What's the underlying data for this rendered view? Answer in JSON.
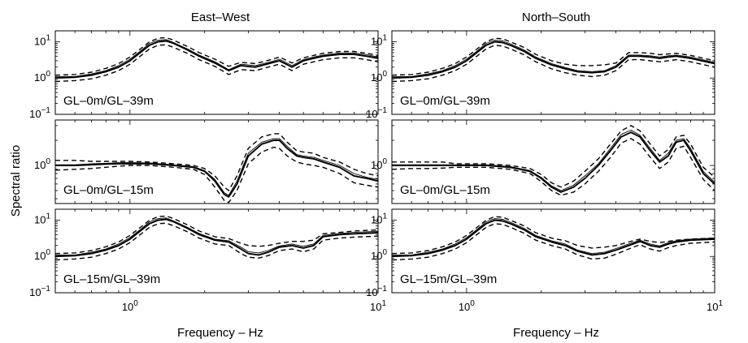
{
  "figure": {
    "ylabel": "Spectral ratio",
    "xlabel": "Frequency – Hz",
    "column_titles": [
      "East–West",
      "North–South"
    ],
    "x_ticks": [
      {
        "value": 1,
        "base": "10",
        "exp": "0"
      },
      {
        "value": 10,
        "base": "10",
        "exp": "1"
      }
    ],
    "y_ticks_wide": [
      {
        "value": 0.1,
        "base": "10",
        "exp": "−1"
      },
      {
        "value": 1,
        "base": "10",
        "exp": "0"
      },
      {
        "value": 10,
        "base": "10",
        "exp": "1"
      }
    ],
    "y_ticks_mid": [
      {
        "value": 1,
        "base": "10",
        "exp": "0"
      }
    ],
    "line_color": "#000000"
  },
  "chart_data": [
    {
      "type": "line",
      "title": "GL–0m/GL–39m",
      "column": "East–West",
      "xscale": "log",
      "yscale": "log",
      "xlim": [
        0.5,
        10
      ],
      "ylim": [
        0.1,
        20
      ],
      "x": [
        0.5,
        0.6,
        0.7,
        0.8,
        0.9,
        1.0,
        1.1,
        1.2,
        1.3,
        1.4,
        1.5,
        1.7,
        1.9,
        2.2,
        2.5,
        2.8,
        3.2,
        3.7,
        4.0,
        4.5,
        5.0,
        5.5,
        6.0,
        7.0,
        8.0,
        9.0,
        10.0
      ],
      "series": [
        {
          "name": "mean",
          "style": "solid",
          "values": [
            1.0,
            1.05,
            1.2,
            1.5,
            2.0,
            3.0,
            5.0,
            8.0,
            10.0,
            10.5,
            9.0,
            6.0,
            4.0,
            2.6,
            1.6,
            2.2,
            2.0,
            2.6,
            3.0,
            2.0,
            3.0,
            3.5,
            4.0,
            4.5,
            4.5,
            4.0,
            3.5
          ]
        },
        {
          "name": "mean+sd",
          "style": "dashed",
          "values": [
            1.2,
            1.25,
            1.45,
            1.85,
            2.5,
            3.8,
            6.3,
            10.0,
            12.5,
            13.0,
            11.0,
            7.5,
            5.0,
            3.3,
            2.1,
            2.7,
            2.5,
            3.2,
            3.8,
            2.6,
            3.6,
            4.2,
            4.8,
            5.4,
            5.4,
            4.8,
            4.2
          ]
        },
        {
          "name": "mean-sd",
          "style": "dashed",
          "values": [
            0.8,
            0.85,
            0.95,
            1.2,
            1.6,
            2.4,
            4.0,
            6.4,
            8.0,
            8.2,
            7.0,
            4.8,
            3.2,
            2.1,
            1.25,
            1.7,
            1.6,
            2.1,
            2.4,
            1.6,
            2.4,
            2.8,
            3.2,
            3.6,
            3.6,
            3.2,
            2.8
          ]
        },
        {
          "name": "individual",
          "style": "solid-thin",
          "values": [
            1.1,
            1.1,
            1.3,
            1.6,
            2.2,
            3.3,
            5.5,
            9.0,
            11.0,
            11.5,
            9.5,
            6.4,
            4.3,
            2.8,
            1.7,
            2.4,
            2.2,
            2.8,
            3.3,
            2.2,
            3.2,
            3.8,
            4.3,
            4.9,
            4.9,
            4.4,
            3.8
          ]
        }
      ]
    },
    {
      "type": "line",
      "title": "GL–0m/GL–15m",
      "column": "East–West",
      "xscale": "log",
      "yscale": "log",
      "xlim": [
        0.5,
        10
      ],
      "ylim": [
        0.35,
        3.5
      ],
      "x": [
        0.5,
        0.6,
        0.7,
        0.8,
        0.9,
        1.0,
        1.2,
        1.5,
        1.8,
        2.0,
        2.2,
        2.4,
        2.5,
        2.7,
        3.0,
        3.4,
        3.8,
        4.0,
        4.3,
        4.7,
        5.0,
        5.5,
        6.0,
        7.0,
        8.0,
        9.0,
        10.0
      ],
      "series": [
        {
          "name": "mean",
          "style": "solid",
          "values": [
            1.0,
            1.0,
            1.02,
            1.04,
            1.05,
            1.05,
            1.05,
            1.0,
            0.95,
            0.85,
            0.65,
            0.45,
            0.42,
            0.6,
            1.3,
            1.8,
            2.0,
            2.0,
            1.6,
            1.3,
            1.25,
            1.2,
            1.1,
            0.95,
            0.75,
            0.7,
            0.65
          ]
        },
        {
          "name": "mean+sd",
          "style": "dashed",
          "values": [
            1.15,
            1.15,
            1.12,
            1.12,
            1.12,
            1.12,
            1.1,
            1.05,
            1.0,
            0.92,
            0.75,
            0.55,
            0.5,
            0.75,
            1.6,
            2.2,
            2.4,
            2.4,
            1.9,
            1.5,
            1.45,
            1.4,
            1.25,
            1.1,
            0.9,
            0.8,
            0.75
          ]
        },
        {
          "name": "mean-sd",
          "style": "dashed",
          "values": [
            0.88,
            0.9,
            0.92,
            0.95,
            0.98,
            1.0,
            1.0,
            0.95,
            0.9,
            0.78,
            0.55,
            0.38,
            0.36,
            0.5,
            1.05,
            1.45,
            1.65,
            1.6,
            1.3,
            1.1,
            1.05,
            1.0,
            0.95,
            0.8,
            0.62,
            0.58,
            0.55
          ]
        },
        {
          "name": "individual",
          "style": "solid-thin",
          "values": [
            1.02,
            1.02,
            1.05,
            1.06,
            1.08,
            1.08,
            1.07,
            1.02,
            0.97,
            0.87,
            0.68,
            0.47,
            0.44,
            0.65,
            1.4,
            1.9,
            2.1,
            2.1,
            1.7,
            1.35,
            1.3,
            1.25,
            1.15,
            1.0,
            0.8,
            0.72,
            0.68
          ]
        }
      ]
    },
    {
      "type": "line",
      "title": "GL–15m/GL–39m",
      "column": "East–West",
      "xscale": "log",
      "yscale": "log",
      "xlim": [
        0.5,
        10
      ],
      "ylim": [
        0.1,
        20
      ],
      "x": [
        0.5,
        0.6,
        0.7,
        0.8,
        0.9,
        1.0,
        1.1,
        1.2,
        1.3,
        1.4,
        1.5,
        1.7,
        1.9,
        2.2,
        2.5,
        2.8,
        3.0,
        3.3,
        3.6,
        4.0,
        4.5,
        5.0,
        5.5,
        6.0,
        7.0,
        8.0,
        10.0
      ],
      "series": [
        {
          "name": "mean",
          "style": "solid",
          "values": [
            1.0,
            1.05,
            1.2,
            1.5,
            2.0,
            3.0,
            5.0,
            8.0,
            10.0,
            10.5,
            9.0,
            6.0,
            4.0,
            2.8,
            2.5,
            1.6,
            1.2,
            1.1,
            1.3,
            1.8,
            2.0,
            1.7,
            2.0,
            3.5,
            4.0,
            4.2,
            4.5
          ]
        },
        {
          "name": "mean+sd",
          "style": "dashed",
          "values": [
            1.2,
            1.25,
            1.45,
            1.85,
            2.5,
            3.8,
            6.3,
            10.0,
            12.5,
            13.0,
            11.0,
            7.5,
            5.0,
            3.5,
            3.1,
            2.3,
            2.0,
            1.9,
            2.0,
            2.3,
            2.6,
            2.6,
            2.8,
            4.2,
            4.6,
            5.0,
            5.4
          ]
        },
        {
          "name": "mean-sd",
          "style": "dashed",
          "values": [
            0.8,
            0.85,
            0.95,
            1.2,
            1.6,
            2.4,
            4.0,
            6.4,
            8.0,
            8.2,
            7.0,
            4.8,
            3.2,
            2.2,
            2.0,
            1.2,
            0.95,
            0.9,
            1.05,
            1.45,
            1.6,
            1.35,
            1.6,
            2.8,
            3.2,
            3.4,
            3.6
          ]
        },
        {
          "name": "individual",
          "style": "solid-thin",
          "values": [
            1.1,
            1.1,
            1.3,
            1.6,
            2.2,
            3.3,
            5.5,
            9.0,
            11.0,
            11.5,
            9.5,
            6.4,
            4.3,
            3.0,
            2.7,
            1.8,
            1.35,
            1.25,
            1.45,
            1.95,
            2.2,
            1.9,
            2.2,
            3.8,
            4.3,
            4.6,
            4.9
          ]
        }
      ]
    },
    {
      "type": "line",
      "title": "GL–0m/GL–39m",
      "column": "North–South",
      "xscale": "log",
      "yscale": "log",
      "xlim": [
        0.5,
        10
      ],
      "ylim": [
        0.1,
        20
      ],
      "x": [
        0.5,
        0.6,
        0.7,
        0.8,
        0.9,
        1.0,
        1.1,
        1.2,
        1.3,
        1.4,
        1.5,
        1.7,
        1.9,
        2.2,
        2.5,
        2.8,
        3.2,
        3.6,
        4.0,
        4.5,
        5.0,
        5.5,
        6.0,
        6.5,
        7.0,
        8.0,
        10.0
      ],
      "series": [
        {
          "name": "mean",
          "style": "solid",
          "values": [
            1.0,
            1.05,
            1.2,
            1.5,
            2.0,
            3.0,
            5.0,
            8.0,
            10.0,
            9.5,
            8.0,
            5.5,
            3.5,
            2.3,
            1.8,
            1.5,
            1.4,
            1.5,
            2.0,
            4.0,
            4.0,
            3.8,
            3.5,
            3.8,
            4.0,
            3.5,
            2.5
          ]
        },
        {
          "name": "mean+sd",
          "style": "dashed",
          "values": [
            1.2,
            1.25,
            1.45,
            1.85,
            2.5,
            3.8,
            6.3,
            10.0,
            12.5,
            12.0,
            10.0,
            7.0,
            4.5,
            3.0,
            2.4,
            2.2,
            2.2,
            2.3,
            2.6,
            5.0,
            5.0,
            4.8,
            4.4,
            4.6,
            4.8,
            4.2,
            3.0
          ]
        },
        {
          "name": "mean-sd",
          "style": "dashed",
          "values": [
            0.8,
            0.85,
            0.95,
            1.2,
            1.6,
            2.4,
            4.0,
            6.4,
            8.0,
            7.6,
            6.4,
            4.4,
            2.8,
            1.8,
            1.4,
            1.2,
            1.1,
            1.2,
            1.6,
            3.2,
            3.2,
            3.0,
            2.8,
            3.0,
            3.2,
            2.8,
            2.0
          ]
        },
        {
          "name": "individual",
          "style": "solid-thin",
          "values": [
            1.1,
            1.1,
            1.3,
            1.6,
            2.2,
            3.3,
            5.5,
            9.0,
            11.0,
            10.5,
            8.8,
            6.0,
            3.8,
            2.5,
            1.95,
            1.6,
            1.5,
            1.6,
            2.2,
            4.3,
            4.3,
            4.1,
            3.8,
            4.1,
            4.3,
            3.8,
            2.7
          ]
        }
      ]
    },
    {
      "type": "line",
      "title": "GL–0m/GL–15m",
      "column": "North–South",
      "xscale": "log",
      "yscale": "log",
      "xlim": [
        0.5,
        10
      ],
      "ylim": [
        0.35,
        3.5
      ],
      "x": [
        0.5,
        0.6,
        0.7,
        0.8,
        0.9,
        1.0,
        1.2,
        1.5,
        1.8,
        2.0,
        2.2,
        2.4,
        2.7,
        3.0,
        3.4,
        3.8,
        4.2,
        4.6,
        5.0,
        5.5,
        6.0,
        6.5,
        7.0,
        7.5,
        8.0,
        9.0,
        10.0
      ],
      "series": [
        {
          "name": "mean",
          "style": "solid",
          "values": [
            1.0,
            1.0,
            1.0,
            1.0,
            1.0,
            1.0,
            1.0,
            0.95,
            0.85,
            0.7,
            0.55,
            0.48,
            0.55,
            0.7,
            1.0,
            1.5,
            2.2,
            2.5,
            2.2,
            1.5,
            1.1,
            1.3,
            1.9,
            2.0,
            1.5,
            0.8,
            0.6
          ]
        },
        {
          "name": "mean+sd",
          "style": "dashed",
          "values": [
            1.1,
            1.1,
            1.1,
            1.1,
            1.05,
            1.05,
            1.05,
            1.0,
            0.92,
            0.78,
            0.62,
            0.55,
            0.65,
            0.85,
            1.2,
            1.8,
            2.6,
            3.0,
            2.6,
            1.8,
            1.3,
            1.55,
            2.2,
            2.3,
            1.8,
            0.95,
            0.72
          ]
        },
        {
          "name": "mean-sd",
          "style": "dashed",
          "values": [
            0.9,
            0.92,
            0.92,
            0.93,
            0.95,
            0.95,
            0.95,
            0.9,
            0.8,
            0.64,
            0.5,
            0.44,
            0.48,
            0.6,
            0.85,
            1.25,
            1.85,
            2.1,
            1.8,
            1.25,
            0.92,
            1.1,
            1.6,
            1.7,
            1.25,
            0.68,
            0.5
          ]
        },
        {
          "name": "individual",
          "style": "solid-thin",
          "values": [
            1.02,
            1.02,
            1.02,
            1.02,
            1.02,
            1.02,
            1.02,
            0.97,
            0.87,
            0.72,
            0.57,
            0.5,
            0.58,
            0.75,
            1.05,
            1.6,
            2.35,
            2.65,
            2.3,
            1.6,
            1.15,
            1.4,
            2.0,
            2.1,
            1.6,
            0.85,
            0.63
          ]
        }
      ]
    },
    {
      "type": "line",
      "title": "GL–15m/GL–39m",
      "column": "North–South",
      "xscale": "log",
      "yscale": "log",
      "xlim": [
        0.5,
        10
      ],
      "ylim": [
        0.1,
        20
      ],
      "x": [
        0.5,
        0.6,
        0.7,
        0.8,
        0.9,
        1.0,
        1.1,
        1.2,
        1.3,
        1.4,
        1.5,
        1.7,
        1.9,
        2.2,
        2.5,
        2.8,
        3.2,
        3.6,
        4.0,
        4.5,
        5.0,
        5.5,
        6.0,
        6.5,
        7.0,
        8.0,
        10.0
      ],
      "series": [
        {
          "name": "mean",
          "style": "solid",
          "values": [
            1.0,
            1.05,
            1.2,
            1.5,
            2.0,
            3.0,
            5.0,
            8.0,
            10.0,
            9.5,
            8.0,
            5.5,
            3.5,
            2.5,
            2.0,
            1.4,
            1.1,
            1.2,
            1.5,
            2.0,
            2.6,
            2.0,
            1.8,
            2.2,
            2.5,
            2.8,
            3.0
          ]
        },
        {
          "name": "mean+sd",
          "style": "dashed",
          "values": [
            1.2,
            1.25,
            1.45,
            1.85,
            2.5,
            3.8,
            6.3,
            10.0,
            12.5,
            12.0,
            10.0,
            7.0,
            4.5,
            3.2,
            2.7,
            2.0,
            1.7,
            1.8,
            2.0,
            2.5,
            3.0,
            2.6,
            2.4,
            2.6,
            2.8,
            3.0,
            3.2
          ]
        },
        {
          "name": "mean-sd",
          "style": "dashed",
          "values": [
            0.8,
            0.85,
            0.95,
            1.2,
            1.6,
            2.4,
            4.0,
            6.4,
            8.0,
            7.6,
            6.4,
            4.4,
            2.8,
            2.0,
            1.6,
            1.1,
            0.85,
            0.9,
            1.15,
            1.6,
            2.1,
            1.6,
            1.4,
            1.75,
            2.0,
            2.3,
            2.5
          ]
        },
        {
          "name": "individual",
          "style": "solid-thin",
          "values": [
            1.1,
            1.1,
            1.3,
            1.6,
            2.2,
            3.3,
            5.5,
            9.0,
            11.0,
            10.5,
            8.8,
            6.0,
            3.8,
            2.7,
            2.2,
            1.5,
            1.2,
            1.3,
            1.65,
            2.2,
            2.8,
            2.2,
            1.95,
            2.4,
            2.7,
            3.0,
            3.2
          ]
        }
      ]
    }
  ]
}
